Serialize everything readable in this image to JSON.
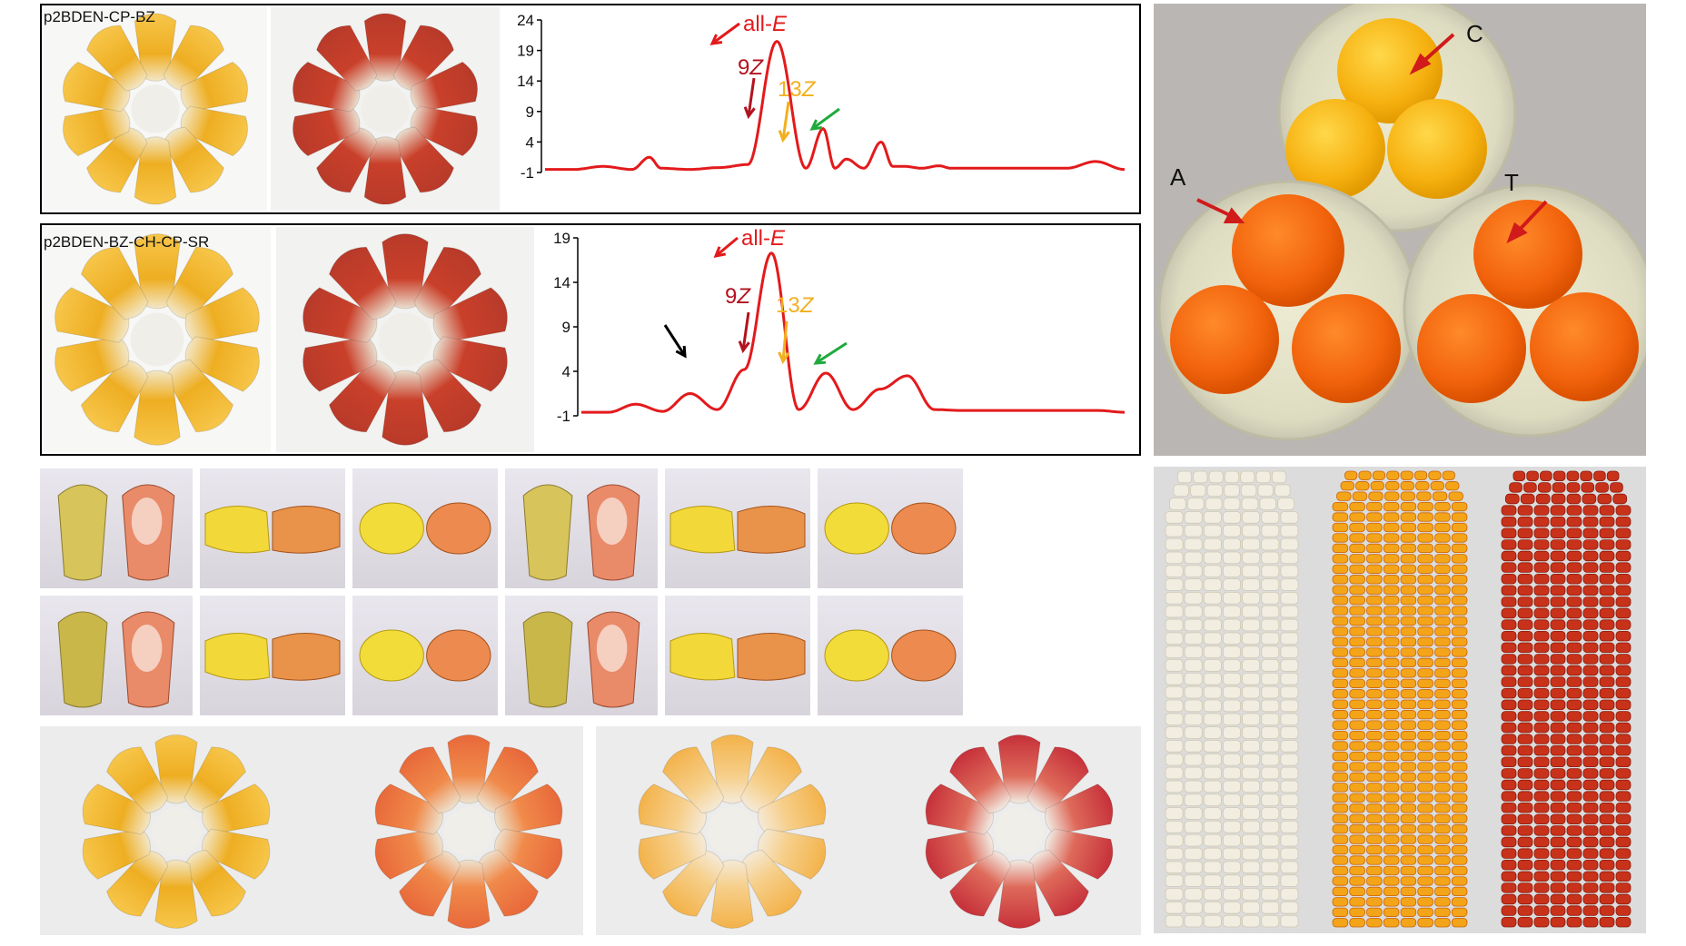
{
  "panels": {
    "chromatogram_top": {
      "construct": "p2BDEN-CP-BZ"
    },
    "chromatogram_bottom": {
      "construct": "p2BDEN-BZ-CH-CP-SR"
    }
  },
  "egg_labels": {
    "C": "C",
    "A": "A",
    "T": "T"
  },
  "peak_labels": {
    "allE_prefix": "all-",
    "allE_italic": "E",
    "z9_prefix": "9",
    "z13_prefix": "13",
    "z_italic": "Z"
  },
  "colors": {
    "trace": "#e31a1c",
    "allE": "#e31a1c",
    "z9": "#b3121f",
    "z13": "#f2b01e",
    "green_arrow": "#1faa3c",
    "black_arrow": "#000000"
  },
  "chart_data": [
    {
      "type": "line",
      "title": "",
      "xlabel": "",
      "ylabel": "",
      "yticks": [
        "24",
        "19",
        "14",
        "9",
        "4",
        "-1"
      ],
      "ylim": [
        -1,
        24
      ],
      "x": [
        0,
        5,
        10,
        15,
        18,
        20,
        25,
        30,
        35,
        40,
        45,
        48,
        50,
        52,
        55,
        58,
        60,
        62,
        65,
        68,
        70,
        72,
        75,
        80,
        85,
        90,
        95,
        100
      ],
      "series": [
        {
          "values": [
            -0.5,
            -0.5,
            0.0,
            -0.5,
            1.5,
            -0.3,
            -0.5,
            -0.2,
            0.3,
            20.5,
            -0.3,
            6.2,
            -0.3,
            1.2,
            -0.3,
            4.0,
            0.0,
            0.0,
            -0.3,
            0.1,
            -0.3,
            -0.3,
            -0.3,
            -0.3,
            -0.3,
            -0.3,
            0.8,
            -0.5
          ]
        }
      ],
      "annotations": [
        "all-E",
        "9Z",
        "13Z"
      ]
    },
    {
      "type": "line",
      "title": "",
      "xlabel": "",
      "ylabel": "",
      "yticks": [
        "19",
        "14",
        "9",
        "4",
        "-1"
      ],
      "ylim": [
        -1,
        19
      ],
      "x": [
        0,
        5,
        10,
        15,
        20,
        25,
        30,
        35,
        40,
        45,
        50,
        55,
        60,
        65,
        70,
        75,
        80,
        85,
        90,
        95,
        100
      ],
      "series": [
        {
          "values": [
            -0.6,
            -0.6,
            0.3,
            -0.5,
            1.5,
            -0.3,
            4.2,
            17.3,
            -0.3,
            3.8,
            -0.3,
            2.0,
            3.5,
            -0.3,
            -0.4,
            -0.4,
            -0.4,
            -0.4,
            -0.4,
            -0.4,
            -0.6
          ]
        }
      ],
      "annotations": [
        "all-E",
        "9Z",
        "13Z"
      ]
    }
  ]
}
